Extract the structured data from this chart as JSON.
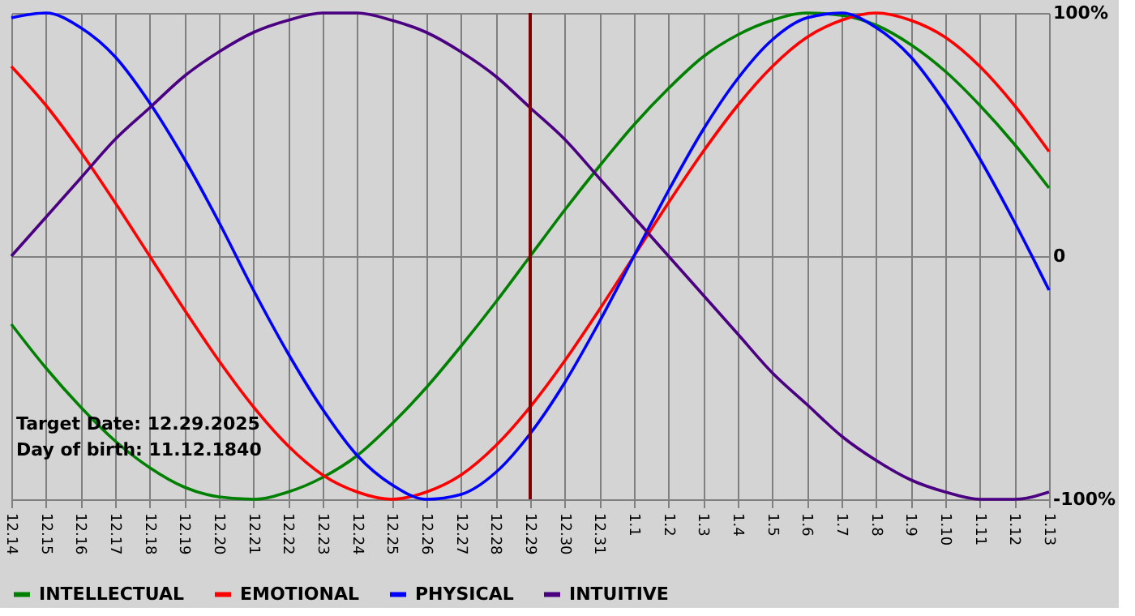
{
  "chart_data": {
    "type": "line",
    "categories": [
      "12.14",
      "12.15",
      "12.16",
      "12.17",
      "12.18",
      "12.19",
      "12.20",
      "12.21",
      "12.22",
      "12.23",
      "12.24",
      "12.25",
      "12.26",
      "12.27",
      "12.28",
      "12.29",
      "12.30",
      "12.31",
      "1.1",
      "1.2",
      "1.3",
      "1.4",
      "1.5",
      "1.6",
      "1.7",
      "1.8",
      "1.9",
      "1.10",
      "1.11",
      "1.12",
      "1.13"
    ],
    "series": [
      {
        "name": "INTELLECTUAL",
        "color": "#008000",
        "values": [
          -28,
          -46,
          -62,
          -76,
          -87,
          -95,
          -99,
          -100,
          -97,
          -91,
          -82,
          -69,
          -54,
          -37,
          -19,
          0,
          19,
          37,
          54,
          69,
          82,
          91,
          97,
          100,
          99,
          95,
          87,
          76,
          62,
          46,
          28
        ]
      },
      {
        "name": "EMOTIONAL",
        "color": "#ff0000",
        "values": [
          78,
          62,
          43,
          22,
          0,
          -22,
          -43,
          -62,
          -78,
          -90,
          -97,
          -100,
          -97,
          -90,
          -78,
          -62,
          -43,
          -22,
          0,
          22,
          43,
          62,
          78,
          90,
          97,
          100,
          97,
          90,
          78,
          62,
          43
        ]
      },
      {
        "name": "PHYSICAL",
        "color": "#0000ff",
        "values": [
          98,
          100,
          94,
          82,
          63,
          40,
          14,
          -14,
          -40,
          -63,
          -82,
          -94,
          -100,
          -98,
          -89,
          -73,
          -52,
          -27,
          0,
          27,
          52,
          73,
          89,
          98,
          100,
          94,
          82,
          63,
          40,
          14,
          -14
        ]
      },
      {
        "name": "INTUITIVE",
        "color": "#4b0082",
        "values": [
          0,
          16,
          32,
          48,
          61,
          74,
          84,
          92,
          97,
          100,
          100,
          97,
          92,
          84,
          74,
          61,
          48,
          32,
          16,
          0,
          -16,
          -32,
          -48,
          -61,
          -74,
          -84,
          -92,
          -97,
          -100,
          -100,
          -97
        ]
      }
    ],
    "ylim": [
      -100,
      100
    ],
    "yticks": [
      {
        "value": 100,
        "label": "100%"
      },
      0,
      {
        "value": -100,
        "label": "-100%"
      }
    ],
    "ref_lines": [
      {
        "axis": "x",
        "value": "12.29",
        "color": "#800000"
      }
    ],
    "annotations": [
      "Target Date: 12.29.2025",
      "Day of birth: 11.12.1840"
    ],
    "grid": true,
    "legend": "bottom",
    "marker": "none",
    "line_style": "solid"
  }
}
